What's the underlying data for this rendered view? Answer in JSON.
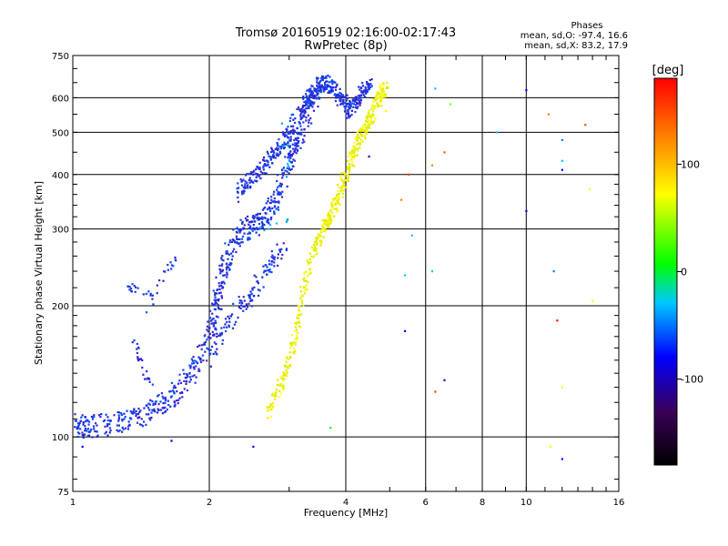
{
  "chart_data": {
    "type": "scatter",
    "title": "Tromsø 20160519 02:16:00-02:17:43",
    "subtitle": "RwPretec (8p)",
    "xlabel": "Frequency [MHz]",
    "ylabel": "Stationary phase Virtual Height [km]",
    "x_scale": "log",
    "y_scale": "log",
    "xlim": [
      1,
      16
    ],
    "ylim": [
      75,
      750
    ],
    "x_ticks": [
      1,
      2,
      4,
      6,
      8,
      10,
      16
    ],
    "x_tick_labels": [
      "1",
      "2",
      "4",
      "6",
      "8",
      "10",
      "16"
    ],
    "y_ticks": [
      75,
      100,
      200,
      300,
      400,
      500,
      600,
      750
    ],
    "y_tick_labels": [
      "75",
      "100",
      "200",
      "300",
      "400",
      "500",
      "600",
      "750"
    ],
    "grid": true,
    "stats": {
      "heading": "Phases",
      "lines": [
        "mean, sd,O: -97.4, 16.6",
        "mean, sd,X: 83.2, 17.9"
      ]
    },
    "colorbar": {
      "label": "[deg]",
      "range": [
        -180,
        180
      ],
      "ticks": [
        100,
        0,
        -100
      ],
      "tick_labels": [
        "100",
        "0",
        "-100"
      ]
    },
    "color_scale": [
      "#000000",
      "#3a005a",
      "#0000ff",
      "#00c8ff",
      "#00ff00",
      "#ffff00",
      "#ff8000",
      "#ff0000"
    ],
    "o_mode_color": "#2a1fe0",
    "x_mode_color": "#e8e800",
    "o_trace": [
      [
        1.0,
        108
      ],
      [
        1.05,
        106
      ],
      [
        1.1,
        106
      ],
      [
        1.2,
        107
      ],
      [
        1.3,
        109
      ],
      [
        1.4,
        111
      ],
      [
        1.5,
        115
      ],
      [
        1.6,
        120
      ],
      [
        1.7,
        127
      ],
      [
        1.8,
        137
      ],
      [
        1.9,
        150
      ],
      [
        2.0,
        170
      ],
      [
        2.05,
        190
      ],
      [
        2.1,
        215
      ],
      [
        2.15,
        240
      ],
      [
        2.2,
        260
      ],
      [
        2.3,
        285
      ],
      [
        2.4,
        300
      ],
      [
        2.5,
        305
      ],
      [
        2.6,
        312
      ],
      [
        2.7,
        325
      ],
      [
        2.8,
        350
      ],
      [
        2.9,
        390
      ],
      [
        3.0,
        430
      ],
      [
        3.1,
        470
      ],
      [
        3.2,
        510
      ],
      [
        3.3,
        560
      ],
      [
        3.4,
        610
      ],
      [
        3.5,
        640
      ]
    ],
    "o_lower_branch": [
      [
        2.0,
        150
      ],
      [
        2.1,
        165
      ],
      [
        2.2,
        180
      ],
      [
        2.3,
        195
      ],
      [
        2.4,
        205
      ],
      [
        2.5,
        215
      ],
      [
        2.6,
        230
      ],
      [
        2.7,
        245
      ],
      [
        2.8,
        260
      ],
      [
        2.9,
        270
      ]
    ],
    "o_upper_branch": [
      [
        2.3,
        360
      ],
      [
        2.4,
        380
      ],
      [
        2.5,
        395
      ],
      [
        2.6,
        410
      ],
      [
        2.7,
        430
      ],
      [
        2.8,
        450
      ],
      [
        2.9,
        470
      ],
      [
        3.0,
        500
      ],
      [
        3.1,
        530
      ],
      [
        3.2,
        560
      ],
      [
        3.3,
        590
      ],
      [
        3.4,
        620
      ],
      [
        3.5,
        640
      ],
      [
        3.6,
        650
      ],
      [
        3.7,
        640
      ],
      [
        3.8,
        620
      ],
      [
        3.9,
        600
      ],
      [
        4.0,
        580
      ],
      [
        4.1,
        560
      ],
      [
        4.2,
        580
      ],
      [
        4.3,
        610
      ],
      [
        4.4,
        630
      ],
      [
        4.5,
        645
      ]
    ],
    "o_low_patches": [
      [
        1.3,
        215
      ],
      [
        1.35,
        220
      ],
      [
        1.4,
        218
      ],
      [
        1.5,
        212
      ],
      [
        1.6,
        240
      ],
      [
        1.7,
        258
      ],
      [
        1.35,
        165
      ],
      [
        1.4,
        160
      ],
      [
        1.4,
        150
      ],
      [
        1.45,
        138
      ],
      [
        1.5,
        128
      ]
    ],
    "x_trace": [
      [
        2.7,
        115
      ],
      [
        2.8,
        125
      ],
      [
        2.9,
        135
      ],
      [
        3.0,
        150
      ],
      [
        3.1,
        175
      ],
      [
        3.2,
        205
      ],
      [
        3.3,
        240
      ],
      [
        3.4,
        270
      ],
      [
        3.5,
        290
      ],
      [
        3.6,
        305
      ],
      [
        3.7,
        320
      ],
      [
        3.8,
        345
      ],
      [
        3.9,
        370
      ],
      [
        4.0,
        400
      ],
      [
        4.1,
        430
      ],
      [
        4.2,
        460
      ],
      [
        4.3,
        490
      ],
      [
        4.4,
        510
      ],
      [
        4.5,
        530
      ],
      [
        4.6,
        560
      ],
      [
        4.7,
        590
      ],
      [
        4.8,
        620
      ],
      [
        4.9,
        630
      ]
    ],
    "scattered_points": [
      [
        6.3,
        630,
        "#00c8ff"
      ],
      [
        6.8,
        580,
        "#80ff00"
      ],
      [
        10.0,
        625,
        "#0000ff"
      ],
      [
        11.2,
        550,
        "#ff8000"
      ],
      [
        13.5,
        520,
        "#ff4000"
      ],
      [
        12.0,
        480,
        "#0080ff"
      ],
      [
        12.0,
        430,
        "#00c8ff"
      ],
      [
        12.0,
        410,
        "#0000ff"
      ],
      [
        6.6,
        450,
        "#ff6000"
      ],
      [
        6.2,
        420,
        "#ff8000"
      ],
      [
        5.5,
        400,
        "#ff4000"
      ],
      [
        5.3,
        350,
        "#ff8000"
      ],
      [
        10.0,
        330,
        "#0000ff"
      ],
      [
        13.8,
        370,
        "#ffff00"
      ],
      [
        6.2,
        240,
        "#00c8ff"
      ],
      [
        11.5,
        240,
        "#0080ff"
      ],
      [
        5.4,
        175,
        "#0000ff"
      ],
      [
        11.7,
        185,
        "#ff0000"
      ],
      [
        6.6,
        135,
        "#0000ff"
      ],
      [
        6.3,
        127,
        "#ff4000"
      ],
      [
        12.0,
        130,
        "#ffff00"
      ],
      [
        8.6,
        500,
        "#00c8ff"
      ],
      [
        14.0,
        205,
        "#ffff00"
      ],
      [
        5.4,
        235,
        "#00c8ff"
      ],
      [
        11.3,
        95,
        "#ffff00"
      ],
      [
        12.0,
        89,
        "#0000ff"
      ],
      [
        3.7,
        105,
        "#00ff00"
      ],
      [
        2.5,
        95,
        "#0000ff"
      ],
      [
        1.65,
        98,
        "#0000ff"
      ],
      [
        1.05,
        95,
        "#0000ff"
      ],
      [
        5.6,
        290,
        "#00c8ff"
      ],
      [
        4.5,
        440,
        "#0000ff"
      ],
      [
        4.9,
        560,
        "#ffff00"
      ]
    ]
  }
}
